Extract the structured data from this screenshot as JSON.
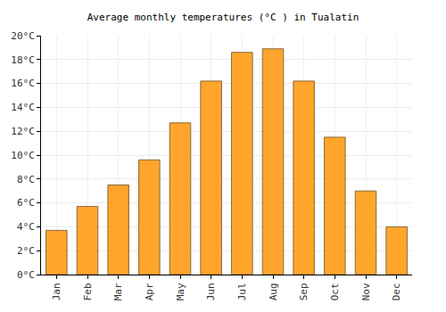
{
  "chart_data": {
    "type": "bar",
    "title": "Average monthly temperatures (°C ) in Tualatin",
    "categories": [
      "Jan",
      "Feb",
      "Mar",
      "Apr",
      "May",
      "Jun",
      "Jul",
      "Aug",
      "Sep",
      "Oct",
      "Nov",
      "Dec"
    ],
    "values": [
      3.7,
      5.7,
      7.5,
      9.6,
      12.7,
      16.2,
      18.6,
      18.9,
      16.2,
      11.5,
      7.0,
      4.0
    ],
    "color": "#ffa52c",
    "ylim": [
      0,
      20
    ],
    "yticks": [
      {
        "value": 0,
        "label": "0°C"
      },
      {
        "value": 2,
        "label": "2°C"
      },
      {
        "value": 4,
        "label": "4°C"
      },
      {
        "value": 6,
        "label": "6°C"
      },
      {
        "value": 8,
        "label": "8°C"
      },
      {
        "value": 10,
        "label": "10°C"
      },
      {
        "value": 12,
        "label": "12°C"
      },
      {
        "value": 14,
        "label": "14°C"
      },
      {
        "value": 16,
        "label": "16°C"
      },
      {
        "value": 18,
        "label": "18°C"
      },
      {
        "value": 20,
        "label": "20°C"
      }
    ],
    "grid": true
  }
}
